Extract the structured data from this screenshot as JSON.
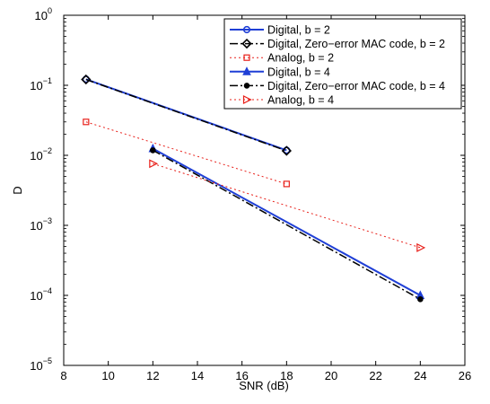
{
  "chart_data": {
    "type": "line",
    "title": "",
    "xlabel": "SNR (dB)",
    "ylabel": "D",
    "xlim": [
      8,
      26
    ],
    "ylim": [
      1e-05,
      1
    ],
    "yscale": "log",
    "xticks": [
      8,
      10,
      12,
      14,
      16,
      18,
      20,
      22,
      24,
      26
    ],
    "xtick_labels": [
      "8",
      "10",
      "12",
      "14",
      "16",
      "18",
      "20",
      "22",
      "24",
      "26"
    ],
    "yticks": [
      1e-05,
      0.0001,
      0.001,
      0.01,
      0.1,
      1
    ],
    "ytick_labels": [
      {
        "base": "10",
        "exp": "−5"
      },
      {
        "base": "10",
        "exp": "−4"
      },
      {
        "base": "10",
        "exp": "−3"
      },
      {
        "base": "10",
        "exp": "−2"
      },
      {
        "base": "10",
        "exp": "−1"
      },
      {
        "base": "10",
        "exp": "0"
      }
    ],
    "grid": false,
    "legend_position": "top-right",
    "series": [
      {
        "name": "Digital, b = 2",
        "x": [
          9,
          18
        ],
        "y": [
          0.122,
          0.0118
        ],
        "color": "#1f3fd6",
        "dash": "solid",
        "marker": "circle",
        "width": 2
      },
      {
        "name": "Digital, Zero−error MAC code, b = 2",
        "x": [
          9,
          18
        ],
        "y": [
          0.121,
          0.0116
        ],
        "color": "#000000",
        "dash": "dashdot",
        "marker": "diamond",
        "width": 1.5
      },
      {
        "name": "Analog, b = 2",
        "x": [
          9,
          18
        ],
        "y": [
          0.03,
          0.0039
        ],
        "color": "#e8201a",
        "dash": "dotted",
        "marker": "square",
        "width": 1
      },
      {
        "name": "Digital, b = 4",
        "x": [
          12,
          24
        ],
        "y": [
          0.0125,
          0.0001
        ],
        "color": "#1f3fd6",
        "dash": "solid",
        "marker": "triangle-up",
        "width": 2
      },
      {
        "name": "Digital, Zero−error MAC code, b = 4",
        "x": [
          12,
          24
        ],
        "y": [
          0.0118,
          8.8e-05
        ],
        "color": "#000000",
        "dash": "dashdot",
        "marker": "dot",
        "width": 1.5
      },
      {
        "name": "Analog, b = 4",
        "x": [
          12,
          24
        ],
        "y": [
          0.0076,
          0.00048
        ],
        "color": "#e8201a",
        "dash": "dotted",
        "marker": "triangle-right",
        "width": 1
      }
    ]
  }
}
